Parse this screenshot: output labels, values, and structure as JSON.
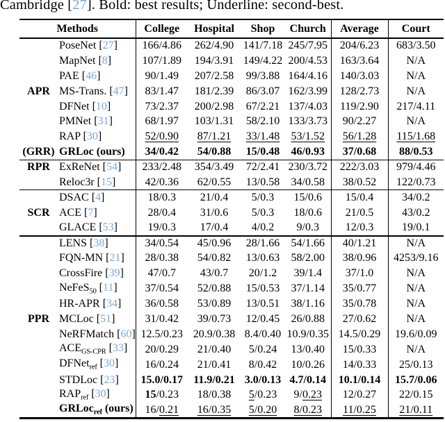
{
  "caption": {
    "pre": "Cambridge [",
    "ref": "27",
    "post": "]. Bold: best results; Underline: second-best."
  },
  "colors": {
    "citation_blue": "#7ba7d7",
    "text": "#000000",
    "rule": "#000000",
    "background": "#ffffff"
  },
  "table": {
    "header": {
      "methods": "Methods",
      "columns": [
        "College",
        "Hospital",
        "Shop",
        "Church",
        "Average",
        "Court"
      ]
    },
    "rows": [
      {
        "method": {
          "text": "PoseNet",
          "ref": "27"
        },
        "cells": [
          {
            "t": "166",
            "r": "4.86"
          },
          {
            "t": "262",
            "r": "4.90"
          },
          {
            "t": "141",
            "r": "7.18"
          },
          {
            "t": "245",
            "r": "7.95"
          },
          {
            "t": "204",
            "r": "6.23"
          },
          {
            "t": "683",
            "r": "3.50"
          }
        ]
      },
      {
        "method": {
          "text": "MapNet",
          "ref": "8"
        },
        "cells": [
          {
            "t": "107",
            "r": "1.89"
          },
          {
            "t": "194",
            "r": "3.91"
          },
          {
            "t": "149",
            "r": "4.22"
          },
          {
            "t": "200",
            "r": "4.53"
          },
          {
            "t": "163",
            "r": "3.64"
          },
          {
            "na": "N/A"
          }
        ]
      },
      {
        "method": {
          "text": "PAE",
          "ref": "46"
        },
        "cells": [
          {
            "t": "90",
            "r": "1.49"
          },
          {
            "t": "207",
            "r": "2.58"
          },
          {
            "t": "99",
            "r": "3.88"
          },
          {
            "t": "164",
            "r": "4.16"
          },
          {
            "t": "140",
            "r": "3.03"
          },
          {
            "na": "N/A"
          }
        ]
      },
      {
        "group": "APR",
        "method": {
          "text": "MS-Trans.",
          "ref": "47"
        },
        "cells": [
          {
            "t": "83",
            "r": "1.47"
          },
          {
            "t": "181",
            "r": "2.39"
          },
          {
            "t": "86",
            "r": "3.07"
          },
          {
            "t": "162",
            "r": "3.99"
          },
          {
            "t": "128",
            "r": "2.73"
          },
          {
            "na": "N/A"
          }
        ]
      },
      {
        "method": {
          "text": "DFNet",
          "ref": "10"
        },
        "cells": [
          {
            "t": "73",
            "r": "2.37"
          },
          {
            "t": "200",
            "r": "2.98"
          },
          {
            "t": "67",
            "r": "2.21"
          },
          {
            "t": "137",
            "r": "4.03"
          },
          {
            "t": "119",
            "r": "2.90"
          },
          {
            "t": "217",
            "r": "4.11"
          }
        ]
      },
      {
        "method": {
          "text": "PMNet",
          "ref": "31"
        },
        "cells": [
          {
            "t": "68",
            "r": "1.97"
          },
          {
            "t": "103",
            "r": "1.31"
          },
          {
            "t": "58",
            "r": "2.10"
          },
          {
            "t": "133",
            "r": "3.73"
          },
          {
            "t": "90",
            "r": "2.27"
          },
          {
            "na": "N/A"
          }
        ]
      },
      {
        "method": {
          "text": "RAP",
          "ref": "30"
        },
        "cells": [
          {
            "t": "52",
            "r": "0.90",
            "ts": "u",
            "rs": "u",
            "ss": "u"
          },
          {
            "t": "87",
            "r": "1.21",
            "ts": "u",
            "rs": "u",
            "ss": "u"
          },
          {
            "t": "33",
            "r": "1.48",
            "ts": "u",
            "rs": "u",
            "ss": "u"
          },
          {
            "t": "53",
            "r": "1.52",
            "ts": "u",
            "rs": "u",
            "ss": "u"
          },
          {
            "t": "56",
            "r": "1.28",
            "ts": "u",
            "rs": "u",
            "ss": "u"
          },
          {
            "t": "115",
            "r": "1.68",
            "ts": "u",
            "rs": "u",
            "ss": "u"
          }
        ]
      },
      {
        "group": "(GRR)",
        "method": {
          "text": "GRLoc",
          "suffix": " (ours)",
          "bold": true
        },
        "sep": "thin",
        "cells": [
          {
            "t": "34",
            "r": "0.42",
            "ts": "b",
            "rs": "b",
            "ss": "b"
          },
          {
            "t": "54",
            "r": "0.88",
            "ts": "b",
            "rs": "b",
            "ss": "b"
          },
          {
            "t": "15",
            "r": "0.48",
            "ts": "b",
            "rs": "b",
            "ss": "b"
          },
          {
            "t": "46",
            "r": "0.93",
            "ts": "b",
            "rs": "b",
            "ss": "b"
          },
          {
            "t": "37",
            "r": "0.68",
            "ts": "b",
            "rs": "b",
            "ss": "b"
          },
          {
            "t": "88",
            "r": "0.53",
            "ts": "b",
            "rs": "b",
            "ss": "b"
          }
        ]
      },
      {
        "group": "RPR",
        "method": {
          "text": "ExReNet",
          "ref": "54"
        },
        "cells": [
          {
            "t": "233",
            "r": "2.48"
          },
          {
            "t": "354",
            "r": "3.49"
          },
          {
            "t": "72",
            "r": "2.41"
          },
          {
            "t": "230",
            "r": "3.72"
          },
          {
            "t": "222",
            "r": "3.03"
          },
          {
            "t": "979",
            "r": "4.46"
          }
        ]
      },
      {
        "method": {
          "text": "Reloc3r",
          "ref": "15"
        },
        "sep": "thin",
        "cells": [
          {
            "t": "42",
            "r": "0.36"
          },
          {
            "t": "62",
            "r": "0.55"
          },
          {
            "t": "13",
            "r": "0.58"
          },
          {
            "t": "34",
            "r": "0.58"
          },
          {
            "t": "38",
            "r": "0.52"
          },
          {
            "t": "122",
            "r": "0.73"
          }
        ]
      },
      {
        "method": {
          "text": "DSAC",
          "ref": "4"
        },
        "cells": [
          {
            "t": "18",
            "r": "0.3"
          },
          {
            "t": "21",
            "r": "0.4"
          },
          {
            "t": "5",
            "r": "0.3"
          },
          {
            "t": "15",
            "r": "0.6"
          },
          {
            "t": "15",
            "r": "0.4"
          },
          {
            "t": "34",
            "r": "0.2"
          }
        ]
      },
      {
        "group": "SCR",
        "method": {
          "text": "ACE",
          "ref": "7"
        },
        "cells": [
          {
            "t": "28",
            "r": "0.4"
          },
          {
            "t": "31",
            "r": "0.6"
          },
          {
            "t": "5",
            "r": "0.3"
          },
          {
            "t": "18",
            "r": "0.6"
          },
          {
            "t": "21",
            "r": "0.5"
          },
          {
            "t": "43",
            "r": "0.2"
          }
        ]
      },
      {
        "method": {
          "text": "GLACE",
          "ref": "53"
        },
        "sep": "thick",
        "cells": [
          {
            "t": "19",
            "r": "0.3"
          },
          {
            "t": "17",
            "r": "0.4"
          },
          {
            "t": "4",
            "r": "0.2"
          },
          {
            "t": "9",
            "r": "0.3"
          },
          {
            "t": "12",
            "r": "0.3"
          },
          {
            "t": "19",
            "r": "0.1"
          }
        ]
      },
      {
        "method": {
          "text": "LENS",
          "ref": "38"
        },
        "cells": [
          {
            "t": "34",
            "r": "0.54"
          },
          {
            "t": "45",
            "r": "0.96"
          },
          {
            "t": "28",
            "r": "1.66"
          },
          {
            "t": "54",
            "r": "1.66"
          },
          {
            "t": "40",
            "r": "1.21"
          },
          {
            "na": "N/A"
          }
        ]
      },
      {
        "method": {
          "text": "FQN-MN",
          "ref": "21"
        },
        "cells": [
          {
            "t": "28",
            "r": "0.38"
          },
          {
            "t": "54",
            "r": "0.82"
          },
          {
            "t": "13",
            "r": "0.63"
          },
          {
            "t": "58",
            "r": "2.00"
          },
          {
            "t": "38",
            "r": "0.96"
          },
          {
            "t": "4253",
            "r": "9.16"
          }
        ]
      },
      {
        "method": {
          "text": "CrossFire",
          "ref": "39"
        },
        "cells": [
          {
            "t": "47",
            "r": "0.7"
          },
          {
            "t": "43",
            "r": "0.7"
          },
          {
            "t": "20",
            "r": "1.2"
          },
          {
            "t": "39",
            "r": "1.4"
          },
          {
            "t": "37",
            "r": "1.0"
          },
          {
            "na": "N/A"
          }
        ]
      },
      {
        "method": {
          "text": "NeFeS",
          "sub": "50",
          "ref": "11"
        },
        "cells": [
          {
            "t": "37",
            "r": "0.54"
          },
          {
            "t": "52",
            "r": "0.88"
          },
          {
            "t": "15",
            "r": "0.53"
          },
          {
            "t": "37",
            "r": "1.14"
          },
          {
            "t": "35",
            "r": "0.77"
          },
          {
            "na": "N/A"
          }
        ]
      },
      {
        "method": {
          "text": "HR-APR",
          "ref": "34"
        },
        "cells": [
          {
            "t": "36",
            "r": "0.58"
          },
          {
            "t": "53",
            "r": "0.89"
          },
          {
            "t": "13",
            "r": "0.51"
          },
          {
            "t": "38",
            "r": "1.16"
          },
          {
            "t": "35",
            "r": "0.78"
          },
          {
            "na": "N/A"
          }
        ]
      },
      {
        "group": "PPR",
        "method": {
          "text": "MCLoc",
          "ref": "51"
        },
        "cells": [
          {
            "t": "31",
            "r": "0.42"
          },
          {
            "t": "39",
            "r": "0.73"
          },
          {
            "t": "12",
            "r": "0.45"
          },
          {
            "t": "26",
            "r": "0.88"
          },
          {
            "t": "27",
            "r": "0.62"
          },
          {
            "na": "N/A"
          }
        ]
      },
      {
        "method": {
          "text": "NeRFMatch",
          "ref": "60"
        },
        "cells": [
          {
            "t": "12.5",
            "r": "0.23"
          },
          {
            "t": "20.9",
            "r": "0.38"
          },
          {
            "t": "8.4",
            "r": "0.40"
          },
          {
            "t": "10.9",
            "r": "0.35"
          },
          {
            "t": "14.5",
            "r": "0.29"
          },
          {
            "t": "19.6",
            "r": "0.09"
          }
        ]
      },
      {
        "method": {
          "text": "ACE",
          "sub": "GS-CPR",
          "ref": "33"
        },
        "cells": [
          {
            "t": "20",
            "r": "0.29"
          },
          {
            "t": "21",
            "r": "0.40"
          },
          {
            "t": "5",
            "r": "0.24"
          },
          {
            "t": "13",
            "r": "0.40"
          },
          {
            "t": "15",
            "r": "0.33"
          },
          {
            "na": "N/A"
          }
        ]
      },
      {
        "method": {
          "text": "DFNet",
          "sub": "ref",
          "ref": "30"
        },
        "cells": [
          {
            "t": "16",
            "r": "0.24"
          },
          {
            "t": "21",
            "r": "0.41"
          },
          {
            "t": "8",
            "r": "0.42"
          },
          {
            "t": "10",
            "r": "0.26"
          },
          {
            "t": "14",
            "r": "0.33"
          },
          {
            "t": "25",
            "r": "0.13"
          }
        ]
      },
      {
        "method": {
          "text": "STDLoc",
          "ref": "23"
        },
        "cells": [
          {
            "t": "15.0",
            "r": "0.17",
            "ts": "b",
            "rs": "b",
            "ss": "b"
          },
          {
            "t": "11.9",
            "r": "0.21",
            "ts": "b",
            "rs": "b",
            "ss": "b"
          },
          {
            "t": "3.0",
            "r": "0.13",
            "ts": "b",
            "rs": "b",
            "ss": "b"
          },
          {
            "t": "4.7",
            "r": "0.14",
            "ts": "b",
            "rs": "b",
            "ss": "b"
          },
          {
            "t": "10.1",
            "r": "0.14",
            "ts": "b",
            "rs": "b",
            "ss": "b"
          },
          {
            "t": "15.7",
            "r": "0.06",
            "ts": "b",
            "rs": "b",
            "ss": "b"
          }
        ]
      },
      {
        "method": {
          "text": "RAP",
          "sub": "ref",
          "ref": "30"
        },
        "cells": [
          {
            "t": "15",
            "r": "0.23",
            "ts": "b"
          },
          {
            "t": "18",
            "r": "0.38"
          },
          {
            "t": "5",
            "r": "0.23",
            "ts": "u"
          },
          {
            "t": "9",
            "r": "0.23",
            "rs": "u"
          },
          {
            "t": "12",
            "r": "0.27"
          },
          {
            "t": "22",
            "r": "0.15"
          }
        ]
      },
      {
        "method": {
          "text": "GRLoc",
          "sub": "ref",
          "suffix": " (ours)",
          "bold": true
        },
        "cells": [
          {
            "t": "16",
            "r": "0.21",
            "rs": "u"
          },
          {
            "t": "16",
            "r": "0.35",
            "ts": "u",
            "rs": "u",
            "ss": "u"
          },
          {
            "t": "5",
            "r": "0.20",
            "ts": "u",
            "rs": "u",
            "ss": "u"
          },
          {
            "t": "8",
            "r": "0.23",
            "ts": "u",
            "rs": "u",
            "ss": "u"
          },
          {
            "t": "11",
            "r": "0.25",
            "ts": "u",
            "rs": "u",
            "ss": "u"
          },
          {
            "t": "21",
            "r": "0.11",
            "ts": "u",
            "rs": "u",
            "ss": "u"
          }
        ]
      }
    ]
  }
}
